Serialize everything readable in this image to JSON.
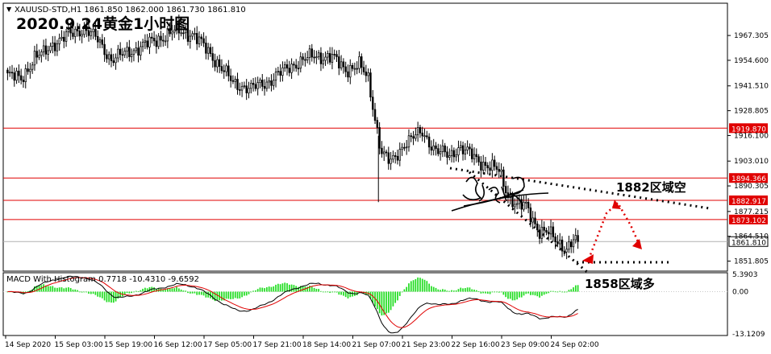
{
  "window": {
    "symbol_line": "XAUUSD-STD,H1  1861.850 1862.000 1861.730 1861.810",
    "headline": "2020.9.24黄金1小时图"
  },
  "chart_data": [
    {
      "type": "candlestick",
      "title": "2020.9.24黄金1小时图",
      "symbol": "XAUUSD-STD",
      "timeframe": "H1",
      "ohlc_text": "1861.850 1862.000 1861.730 1861.810",
      "ylim": [
        1847.5,
        1983.0
      ],
      "y_ticks": [
        "1967.305",
        "1954.600",
        "1941.510",
        "1928.805",
        "1916.100",
        "1903.010",
        "1890.305",
        "1877.215",
        "1864.510",
        "1851.805"
      ],
      "x_ticks": [
        "14 Sep 2020",
        "15 Sep 03:00",
        "15 Sep 19:00",
        "16 Sep 12:00",
        "17 Sep 05:00",
        "17 Sep 21:00",
        "18 Sep 14:00",
        "21 Sep 07:00",
        "21 Sep 23:00",
        "22 Sep 16:00",
        "23 Sep 09:00",
        "24 Sep 02:00"
      ],
      "price_lines": [
        1919.87,
        1894.366,
        1882.917,
        1873.102
      ],
      "price_line_labels": [
        "1919.870",
        "1894.366",
        "1882.917",
        "1873.102"
      ],
      "current_price": 1861.81,
      "current_price_label": "1861.810",
      "anchors": [
        [
          0,
          1947
        ],
        [
          6,
          1945
        ],
        [
          12,
          1956
        ],
        [
          16,
          1958
        ],
        [
          20,
          1963
        ],
        [
          28,
          1968
        ],
        [
          34,
          1971
        ],
        [
          40,
          1965
        ],
        [
          46,
          1955
        ],
        [
          56,
          1960
        ],
        [
          66,
          1965
        ],
        [
          75,
          1970
        ],
        [
          82,
          1968
        ],
        [
          90,
          1958
        ],
        [
          100,
          1943
        ],
        [
          108,
          1940
        ],
        [
          116,
          1944
        ],
        [
          126,
          1952
        ],
        [
          136,
          1957
        ],
        [
          144,
          1956
        ],
        [
          150,
          1950
        ],
        [
          156,
          1952
        ],
        [
          160,
          1945
        ],
        [
          163,
          1925
        ],
        [
          166,
          1907
        ],
        [
          170,
          1902
        ],
        [
          176,
          1912
        ],
        [
          184,
          1918
        ],
        [
          190,
          1908
        ],
        [
          196,
          1906
        ],
        [
          200,
          1910
        ],
        [
          206,
          1906
        ],
        [
          212,
          1901
        ],
        [
          218,
          1898
        ],
        [
          222,
          1886
        ],
        [
          226,
          1880
        ],
        [
          230,
          1880
        ],
        [
          236,
          1867
        ],
        [
          240,
          1866
        ],
        [
          244,
          1862
        ],
        [
          248,
          1858
        ],
        [
          251,
          1862
        ],
        [
          253,
          1862
        ]
      ],
      "annotations": {
        "resistance_label": "1882区域空",
        "support_label": "1858区域多"
      }
    },
    {
      "type": "histogram+line",
      "title": "MACD With Histogram 0.7718 -10.4310 -9.6592",
      "indicator": "MACD With Histogram",
      "values_text": "0.7718 -10.4310 -9.6592",
      "ylim": [
        -13.1209,
        5.3903
      ],
      "y_ticks": [
        "5.3903",
        "0.00",
        "-13.1209"
      ]
    }
  ]
}
